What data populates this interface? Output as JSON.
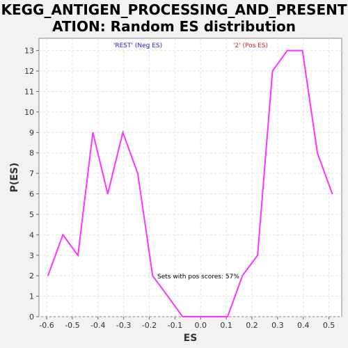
{
  "chart_data": {
    "type": "line",
    "title_lines": [
      "KEGG_ANTIGEN_PROCESSING_AND_PRESENT",
      "ATION: Random ES distribution"
    ],
    "xlabel": "ES",
    "ylabel": "P(ES)",
    "xlim": [
      -0.63,
      0.55
    ],
    "ylim": [
      0,
      13.6
    ],
    "x_ticks": [
      -0.6,
      -0.5,
      -0.4,
      -0.3,
      -0.2,
      -0.1,
      0.0,
      0.1,
      0.2,
      0.3,
      0.4,
      0.5
    ],
    "x_tick_labels": [
      "-0.6",
      "-0.5",
      "-0.4",
      "-0.3",
      "-0.2",
      "-0.1",
      "0.0",
      "0.1",
      "0.2",
      "0.3",
      "0.4",
      "0.5"
    ],
    "y_ticks": [
      0,
      1,
      2,
      3,
      4,
      5,
      6,
      7,
      8,
      9,
      10,
      11,
      12,
      13
    ],
    "y_tick_labels": [
      "0",
      "1",
      "2",
      "3",
      "4",
      "5",
      "6",
      "7",
      "8",
      "9",
      "10",
      "11",
      "12",
      "13"
    ],
    "grid": true,
    "series": [
      {
        "color": "#ff33ff",
        "x": [
          -0.595,
          -0.537,
          -0.478,
          -0.42,
          -0.362,
          -0.303,
          -0.245,
          -0.187,
          -0.128,
          -0.07,
          -0.012,
          0.047,
          0.105,
          0.163,
          0.222,
          0.28,
          0.338,
          0.397,
          0.455,
          0.513
        ],
        "y": [
          2,
          4,
          3,
          9,
          6,
          9,
          7,
          2,
          1,
          0,
          0,
          0,
          0,
          2,
          3,
          12,
          13,
          13,
          8,
          6
        ]
      }
    ],
    "legend": [
      {
        "label": "'REST' (Neg ES)",
        "color": "#2222cc"
      },
      {
        "label": "'2' (Pos ES)",
        "color": "#dd2222"
      }
    ],
    "annotation": "Sets with pos scores: 57%"
  }
}
